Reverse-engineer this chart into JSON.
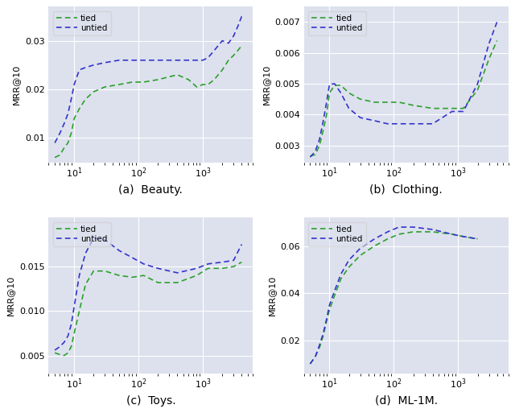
{
  "background_color": "#dde1ed",
  "fig_background": "#ffffff",
  "line_color_tied": "#2ca02c",
  "line_color_untied": "#3333cc",
  "subplot_titles": [
    "(a)  Beauty.",
    "(b)  Clothing.",
    "(c)  Toys.",
    "(d)  ML-1M."
  ],
  "ylabel": "MRR@10",
  "beauty_x": [
    5,
    6,
    7,
    8,
    9,
    10,
    12,
    15,
    20,
    30,
    50,
    80,
    120,
    200,
    400,
    600,
    800,
    1000,
    1200,
    1500,
    2000,
    2500,
    3000,
    3500,
    4000
  ],
  "beauty_tied": [
    0.006,
    0.0065,
    0.008,
    0.009,
    0.011,
    0.014,
    0.016,
    0.018,
    0.0195,
    0.0205,
    0.021,
    0.0215,
    0.0215,
    0.022,
    0.023,
    0.022,
    0.0205,
    0.021,
    0.021,
    0.022,
    0.024,
    0.026,
    0.027,
    0.028,
    0.029
  ],
  "beauty_untied": [
    0.009,
    0.011,
    0.013,
    0.015,
    0.018,
    0.021,
    0.024,
    0.0245,
    0.025,
    0.0255,
    0.026,
    0.026,
    0.026,
    0.026,
    0.026,
    0.026,
    0.026,
    0.026,
    0.0265,
    0.028,
    0.03,
    0.0295,
    0.031,
    0.033,
    0.035
  ],
  "clothing_x": [
    5,
    6,
    7,
    8,
    9,
    10,
    12,
    15,
    20,
    30,
    50,
    80,
    120,
    200,
    400,
    800,
    1200,
    2000,
    3000,
    4000
  ],
  "clothing_tied": [
    0.00265,
    0.0027,
    0.003,
    0.0035,
    0.004,
    0.0047,
    0.00495,
    0.00495,
    0.0047,
    0.0045,
    0.0044,
    0.0044,
    0.0044,
    0.0043,
    0.0042,
    0.0042,
    0.0042,
    0.0048,
    0.0058,
    0.0064
  ],
  "clothing_untied": [
    0.00262,
    0.0028,
    0.0032,
    0.0038,
    0.0044,
    0.00498,
    0.005,
    0.0047,
    0.0042,
    0.0039,
    0.0038,
    0.0037,
    0.0037,
    0.0037,
    0.0037,
    0.0041,
    0.0041,
    0.005,
    0.0063,
    0.007
  ],
  "toys_x": [
    5,
    6,
    7,
    8,
    9,
    10,
    12,
    15,
    20,
    30,
    50,
    80,
    120,
    200,
    400,
    800,
    1200,
    2000,
    3000,
    4000
  ],
  "toys_tied": [
    0.0053,
    0.0051,
    0.005,
    0.0053,
    0.006,
    0.0075,
    0.01,
    0.013,
    0.0145,
    0.0145,
    0.014,
    0.0138,
    0.014,
    0.0132,
    0.0132,
    0.014,
    0.0148,
    0.0148,
    0.015,
    0.0155
  ],
  "toys_untied": [
    0.0056,
    0.006,
    0.0065,
    0.0072,
    0.0085,
    0.0105,
    0.014,
    0.0165,
    0.0182,
    0.018,
    0.0168,
    0.016,
    0.0153,
    0.0148,
    0.0143,
    0.0148,
    0.0153,
    0.0155,
    0.0157,
    0.0175
  ],
  "ml1m_x": [
    5,
    6,
    7,
    8,
    9,
    10,
    12,
    15,
    20,
    30,
    50,
    80,
    120,
    200,
    400,
    800,
    1200,
    2000
  ],
  "ml1m_tied": [
    0.01,
    0.013,
    0.017,
    0.022,
    0.028,
    0.033,
    0.039,
    0.046,
    0.051,
    0.056,
    0.06,
    0.063,
    0.065,
    0.066,
    0.066,
    0.065,
    0.064,
    0.063
  ],
  "ml1m_untied": [
    0.01,
    0.013,
    0.018,
    0.023,
    0.029,
    0.035,
    0.041,
    0.048,
    0.054,
    0.059,
    0.063,
    0.066,
    0.068,
    0.068,
    0.067,
    0.065,
    0.064,
    0.063
  ]
}
